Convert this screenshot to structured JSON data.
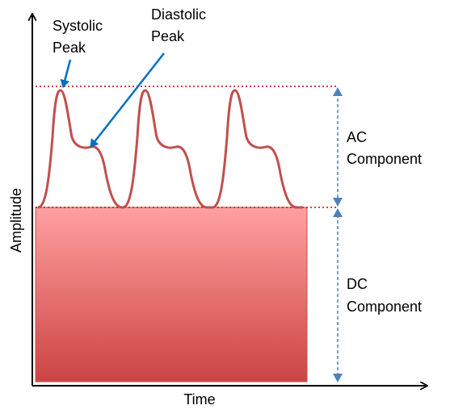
{
  "labels": {
    "systolic_line1": "Systolic",
    "systolic_line2": "Peak",
    "diastolic_line1": "Diastolic",
    "diastolic_line2": "Peak",
    "ac_line1": "AC",
    "ac_line2": "Component",
    "dc_line1": "DC",
    "dc_line2": "Component",
    "x_axis": "Time",
    "y_axis": "Amplitude"
  },
  "colors": {
    "pulse_wave": "#c0504d",
    "dc_block_top": "#ffa0a0",
    "dc_block_bottom": "#cc4444",
    "dotted_guide": "#cc0000",
    "pointer_arrow": "#0070c0",
    "dimension_arrow": "#4f81bd",
    "axis": "#000000"
  }
}
